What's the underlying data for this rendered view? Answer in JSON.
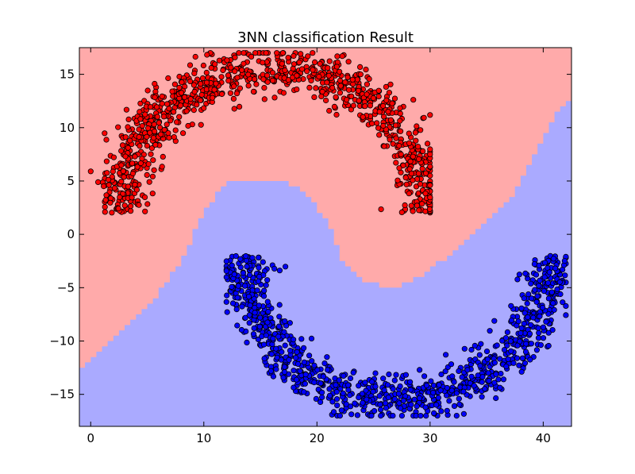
{
  "chart_data": {
    "type": "scatter",
    "title": "3NN classification Result",
    "xlabel": "",
    "ylabel": "",
    "xlim": [
      -1,
      42.5
    ],
    "ylim": [
      -18,
      17.5
    ],
    "x_ticks": [
      0,
      10,
      20,
      30,
      40
    ],
    "y_ticks": [
      15,
      10,
      5,
      0,
      -5,
      -10,
      -15
    ],
    "x_tick_labels": [
      "0",
      "10",
      "20",
      "30",
      "40"
    ],
    "y_tick_labels": [
      "15",
      "10",
      "5",
      "0",
      "−5",
      "−10",
      "−15"
    ],
    "grid": false,
    "legend": "none",
    "decision_regions": [
      {
        "class": "red",
        "color": "#FFAAAA",
        "note": "upper region"
      },
      {
        "class": "blue",
        "color": "#AAAAFF",
        "boundary_points": [
          [
            -1,
            -13
          ],
          [
            1,
            -11
          ],
          [
            3,
            -9
          ],
          [
            5,
            -7
          ],
          [
            7,
            -4
          ],
          [
            8,
            -2.5
          ],
          [
            10,
            2
          ],
          [
            11,
            3.5
          ],
          [
            12,
            5
          ],
          [
            17,
            5
          ],
          [
            19,
            4
          ],
          [
            21,
            1
          ],
          [
            22,
            -2
          ],
          [
            24,
            -4.5
          ],
          [
            27,
            -5
          ],
          [
            29,
            -4
          ],
          [
            31,
            -2.5
          ],
          [
            33,
            -1
          ],
          [
            35,
            1
          ],
          [
            37,
            3
          ],
          [
            39,
            7
          ],
          [
            41,
            11
          ],
          [
            42.5,
            12.5
          ]
        ]
      }
    ],
    "series": [
      {
        "color": "#FF0000",
        "edge_color": "#000000",
        "shape": "upper crescent",
        "arc_center": [
          16,
          2
        ],
        "arc_radius": 13.5,
        "arc_angle_range_deg": [
          0,
          180
        ],
        "x_range": [
          0,
          30
        ],
        "y_range": [
          2,
          17
        ],
        "approx_count": 1000
      },
      {
        "color": "#0000FF",
        "edge_color": "#000000",
        "shape": "lower crescent",
        "arc_center": [
          27,
          -2
        ],
        "arc_radius": 13.5,
        "arc_angle_range_deg": [
          180,
          360
        ],
        "x_range": [
          12,
          42
        ],
        "y_range": [
          -17,
          -2
        ],
        "approx_count": 1000
      }
    ]
  }
}
